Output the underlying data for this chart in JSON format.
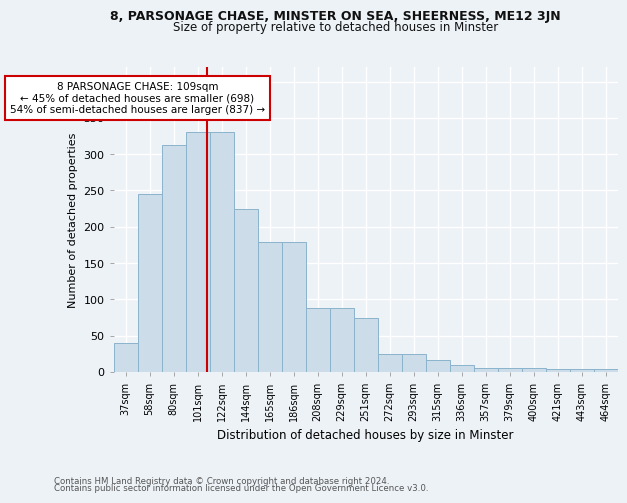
{
  "title1": "8, PARSONAGE CHASE, MINSTER ON SEA, SHEERNESS, ME12 3JN",
  "title2": "Size of property relative to detached houses in Minster",
  "xlabel": "Distribution of detached houses by size in Minster",
  "ylabel": "Number of detached properties",
  "footnote1": "Contains HM Land Registry data © Crown copyright and database right 2024.",
  "footnote2": "Contains public sector information licensed under the Open Government Licence v3.0.",
  "categories": [
    "37sqm",
    "58sqm",
    "80sqm",
    "101sqm",
    "122sqm",
    "144sqm",
    "165sqm",
    "186sqm",
    "208sqm",
    "229sqm",
    "251sqm",
    "272sqm",
    "293sqm",
    "315sqm",
    "336sqm",
    "357sqm",
    "379sqm",
    "400sqm",
    "421sqm",
    "443sqm",
    "464sqm"
  ],
  "values": [
    40,
    245,
    313,
    330,
    330,
    225,
    179,
    179,
    88,
    88,
    75,
    25,
    25,
    16,
    9,
    6,
    5,
    5,
    4,
    4,
    4
  ],
  "bar_color": "#ccdce8",
  "bar_edge_color": "#8ab4cc",
  "annotation_title": "8 PARSONAGE CHASE: 109sqm",
  "annotation_line1": "← 45% of detached houses are smaller (698)",
  "annotation_line2": "54% of semi-detached houses are larger (837) →",
  "annotation_box_color": "#ffffff",
  "annotation_box_edge": "#cc0000",
  "red_line_color": "#cc0000",
  "ylim": [
    0,
    420
  ],
  "yticks": [
    0,
    50,
    100,
    150,
    200,
    250,
    300,
    350,
    400
  ],
  "background_color": "#edf2f7",
  "grid_color": "#ffffff"
}
